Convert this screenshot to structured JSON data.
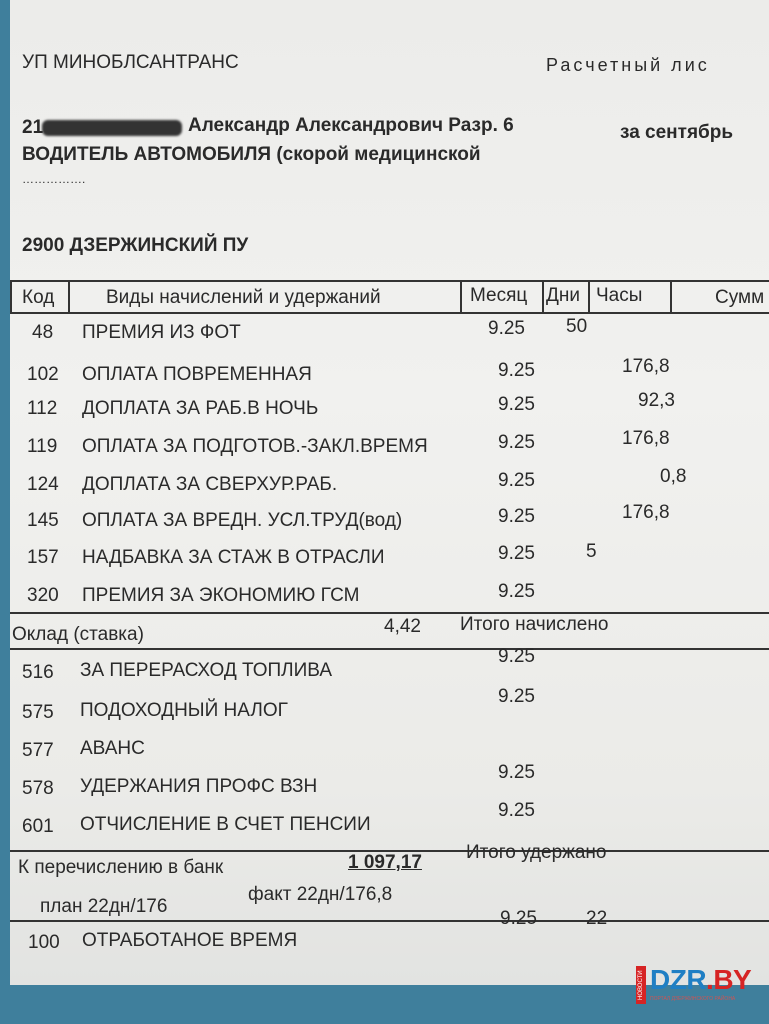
{
  "header": {
    "org": "УП МИНОБЛСАНТРАНС",
    "doc_title": "Расчетный лис",
    "employee_prefix": "21",
    "employee_name": "Александр Александрович Разр. 6",
    "period": "за сентябрь",
    "position": "ВОДИТЕЛЬ АВТОМОБИЛЯ (скорой медицинской",
    "position_cont": "…………….",
    "department": "2900 ДЗЕРЖИНСКИЙ ПУ"
  },
  "table": {
    "columns": [
      "Код",
      "Виды начислений и удержаний",
      "Месяц",
      "Дни",
      "Часы",
      "Сумм"
    ],
    "accruals": [
      {
        "code": "48",
        "name": "ПРЕМИЯ ИЗ ФОТ",
        "month": "9.25",
        "days": "50",
        "hours": ""
      },
      {
        "code": "102",
        "name": "ОПЛАТА ПОВРЕМЕННАЯ",
        "month": "9.25",
        "days": "",
        "hours": "176,8"
      },
      {
        "code": "112",
        "name": "ДОПЛАТА ЗА РАБ.В НОЧЬ",
        "month": "9.25",
        "days": "",
        "hours": "92,3"
      },
      {
        "code": "119",
        "name": "ОПЛАТА ЗА ПОДГОТОВ.-ЗАКЛ.ВРЕМЯ",
        "month": "9.25",
        "days": "",
        "hours": "176,8"
      },
      {
        "code": "124",
        "name": "ДОПЛАТА ЗА СВЕРХУР.РАБ.",
        "month": "9.25",
        "days": "",
        "hours": "0,8"
      },
      {
        "code": "145",
        "name": "ОПЛАТА ЗА ВРЕДН. УСЛ.ТРУД(вод)",
        "month": "9.25",
        "days": "",
        "hours": "176,8"
      },
      {
        "code": "157",
        "name": "НАДБАВКА ЗА СТАЖ В ОТРАСЛИ",
        "month": "9.25",
        "days": "5",
        "hours": ""
      },
      {
        "code": "320",
        "name": "ПРЕМИЯ ЗА ЭКОНОМИЮ ГСМ",
        "month": "9.25",
        "days": "",
        "hours": ""
      }
    ],
    "salary_label": "Оклад (ставка)",
    "salary_value": "4,42",
    "total_accrued_label": "Итого начислено",
    "deductions": [
      {
        "code": "516",
        "name": "ЗА ПЕРЕРАСХОД ТОПЛИВА",
        "month": "9.25"
      },
      {
        "code": "575",
        "name": "ПОДОХОДНЫЙ НАЛОГ",
        "month": "9.25"
      },
      {
        "code": "577",
        "name": "АВАНС",
        "month": ""
      },
      {
        "code": "578",
        "name": "УДЕРЖАНИЯ ПРОФС ВЗН",
        "month": "9.25"
      },
      {
        "code": "601",
        "name": "ОТЧИСЛЕНИЕ В СЧЕТ ПЕНСИИ",
        "month": "9.25"
      }
    ],
    "bank_label": "К перечислению в банк",
    "bank_value": "1 097,17",
    "total_deducted_label": "Итого удержано",
    "plan": "план 22дн/176",
    "fact": "факт 22дн/176,8",
    "worked": {
      "code": "100",
      "name": "ОТРАБОТАНОЕ ВРЕМЯ",
      "month": "9.25",
      "days": "22"
    }
  },
  "watermark": {
    "brand": "DZR",
    "brand_tld": ".BY",
    "tag": "НОВОСТИ",
    "subtitle": "ПОРТАЛ ДЗЕРЖИНСКОГО РАЙОНА"
  }
}
